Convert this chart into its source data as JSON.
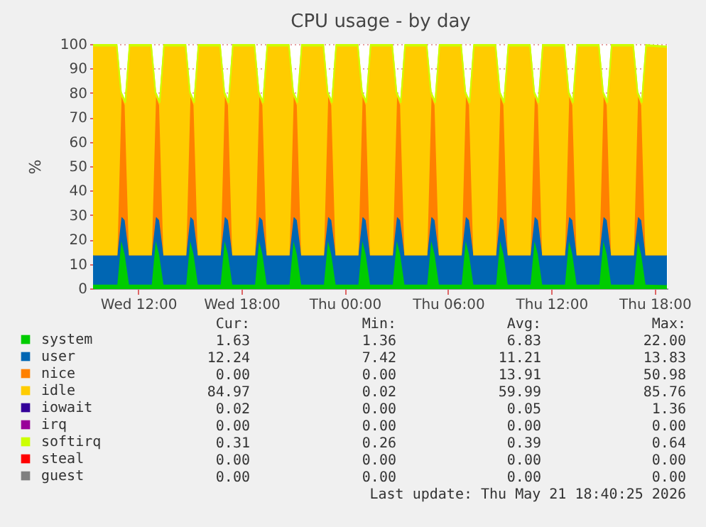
{
  "chart_data": {
    "type": "area",
    "title": "CPU usage - by day",
    "ylabel": "%",
    "stacked": true,
    "grid": true,
    "legend": "bottom left",
    "xlim": [
      "2026-05-20T09:25",
      "2026-05-21T18:45"
    ],
    "xticks": [
      {
        "value": "2026-05-20T12:00",
        "label": "Wed 12:00"
      },
      {
        "value": "2026-05-20T18:00",
        "label": "Wed 18:00"
      },
      {
        "value": "2026-05-21T00:00",
        "label": "Thu 00:00"
      },
      {
        "value": "2026-05-21T06:00",
        "label": "Thu 06:00"
      },
      {
        "value": "2026-05-21T12:00",
        "label": "Thu 12:00"
      },
      {
        "value": "2026-05-21T18:00",
        "label": "Thu 18:00"
      }
    ],
    "ylim": [
      0,
      100
    ],
    "yticks": [
      0,
      10,
      20,
      30,
      40,
      50,
      60,
      70,
      80,
      90,
      100
    ],
    "x": [
      "2026-05-20T09:25",
      "2026-05-20T10:45",
      "2026-05-20T11:00",
      "2026-05-20T11:15",
      "2026-05-20T11:30",
      "2026-05-20T12:45",
      "2026-05-20T13:00",
      "2026-05-20T13:15",
      "2026-05-20T13:30",
      "2026-05-20T14:45",
      "2026-05-20T15:00",
      "2026-05-20T15:15",
      "2026-05-20T15:30",
      "2026-05-20T16:45",
      "2026-05-20T17:00",
      "2026-05-20T17:15",
      "2026-05-20T17:30",
      "2026-05-20T18:45",
      "2026-05-20T19:00",
      "2026-05-20T19:15",
      "2026-05-20T19:30",
      "2026-05-20T20:45",
      "2026-05-20T21:00",
      "2026-05-20T21:15",
      "2026-05-20T21:30",
      "2026-05-20T22:45",
      "2026-05-20T23:00",
      "2026-05-20T23:15",
      "2026-05-20T23:30",
      "2026-05-21T00:45",
      "2026-05-21T01:00",
      "2026-05-21T01:15",
      "2026-05-21T01:30",
      "2026-05-21T02:45",
      "2026-05-21T03:00",
      "2026-05-21T03:15",
      "2026-05-21T03:30",
      "2026-05-21T04:45",
      "2026-05-21T05:00",
      "2026-05-21T05:15",
      "2026-05-21T05:30",
      "2026-05-21T06:45",
      "2026-05-21T07:00",
      "2026-05-21T07:15",
      "2026-05-21T07:30",
      "2026-05-21T08:45",
      "2026-05-21T09:00",
      "2026-05-21T09:15",
      "2026-05-21T09:30",
      "2026-05-21T10:45",
      "2026-05-21T11:00",
      "2026-05-21T11:15",
      "2026-05-21T11:30",
      "2026-05-21T12:45",
      "2026-05-21T13:00",
      "2026-05-21T13:15",
      "2026-05-21T13:30",
      "2026-05-21T14:45",
      "2026-05-21T15:00",
      "2026-05-21T15:15",
      "2026-05-21T15:30",
      "2026-05-21T16:45",
      "2026-05-21T17:00",
      "2026-05-21T17:15",
      "2026-05-21T17:30",
      "2026-05-21T18:40"
    ],
    "series": [
      {
        "name": "system",
        "color": "#00cc00",
        "values": [
          1.8,
          1.8,
          21,
          14,
          1.8,
          1.8,
          21,
          14,
          1.8,
          1.8,
          21,
          14,
          1.8,
          1.8,
          21,
          14,
          1.8,
          1.8,
          21,
          14,
          1.8,
          1.8,
          21,
          14,
          1.8,
          1.8,
          21,
          14,
          1.8,
          1.8,
          21,
          14,
          1.8,
          1.8,
          21,
          14,
          1.8,
          1.8,
          21,
          14,
          1.8,
          1.8,
          21,
          14,
          1.8,
          1.8,
          21,
          14,
          1.8,
          1.8,
          21,
          14,
          1.8,
          1.8,
          21,
          14,
          1.8,
          1.8,
          21,
          14,
          1.8,
          1.8,
          21,
          14,
          1.8,
          1.6
        ]
      },
      {
        "name": "user",
        "color": "#0066b3",
        "values": [
          12,
          12,
          9,
          14,
          12,
          12,
          9,
          14,
          12,
          12,
          9,
          14,
          12,
          12,
          9,
          14,
          12,
          12,
          9,
          14,
          12,
          12,
          9,
          14,
          12,
          12,
          9,
          14,
          12,
          12,
          9,
          14,
          12,
          12,
          9,
          14,
          12,
          12,
          9,
          14,
          12,
          12,
          9,
          14,
          12,
          12,
          9,
          14,
          12,
          12,
          9,
          14,
          12,
          12,
          9,
          14,
          12,
          12,
          9,
          14,
          12,
          12,
          9,
          14,
          12,
          12.2
        ]
      },
      {
        "name": "nice",
        "color": "#ff8000",
        "values": [
          0,
          0,
          50,
          47,
          0,
          0,
          50,
          47,
          0,
          0,
          50,
          47,
          0,
          0,
          50,
          47,
          0,
          0,
          50,
          47,
          0,
          0,
          50,
          47,
          0,
          0,
          50,
          47,
          0,
          0,
          50,
          47,
          0,
          0,
          50,
          47,
          0,
          0,
          50,
          47,
          0,
          0,
          50,
          47,
          0,
          0,
          50,
          47,
          0,
          0,
          50,
          47,
          0,
          0,
          50,
          47,
          0,
          0,
          50,
          47,
          0,
          0,
          50,
          47,
          0,
          0
        ]
      },
      {
        "name": "idle",
        "color": "#ffcc00",
        "values": [
          85.5,
          85.5,
          0,
          1,
          85.5,
          85.5,
          0,
          1,
          85.5,
          85.5,
          0,
          1,
          85.5,
          85.5,
          0,
          1,
          85.5,
          85.5,
          0,
          1,
          85.5,
          85.5,
          0,
          1,
          85.5,
          85.5,
          0,
          1,
          85.5,
          85.5,
          0,
          1,
          85.5,
          85.5,
          0,
          1,
          85.5,
          85.5,
          0,
          1,
          85.5,
          85.5,
          0,
          1,
          85.5,
          85.5,
          0,
          1,
          85.5,
          85.5,
          0,
          1,
          85.5,
          85.5,
          0,
          1,
          85.5,
          85.5,
          0,
          1,
          85.5,
          85.5,
          0,
          1,
          85.5,
          85
        ]
      },
      {
        "name": "iowait",
        "color": "#330099",
        "values": [
          null,
          null,
          null,
          null,
          null,
          null,
          null,
          null,
          null,
          null,
          null,
          null,
          null,
          null,
          null,
          null,
          null,
          null,
          null,
          null,
          null,
          null,
          null,
          null,
          null,
          null,
          null,
          null,
          null,
          null,
          null,
          null,
          null,
          null,
          null,
          null,
          null,
          null,
          null,
          null,
          null,
          null,
          null,
          null,
          null,
          null,
          null,
          null,
          null,
          null,
          null,
          null,
          null,
          null,
          null,
          null,
          null,
          null,
          null,
          null,
          null,
          null,
          null,
          null,
          null,
          null
        ]
      },
      {
        "name": "irq",
        "color": "#990099",
        "values": [
          null,
          null,
          null,
          null,
          null,
          null,
          null,
          null,
          null,
          null,
          null,
          null,
          null,
          null,
          null,
          null,
          null,
          null,
          null,
          null,
          null,
          null,
          null,
          null,
          null,
          null,
          null,
          null,
          null,
          null,
          null,
          null,
          null,
          null,
          null,
          null,
          null,
          null,
          null,
          null,
          null,
          null,
          null,
          null,
          null,
          null,
          null,
          null,
          null,
          null,
          null,
          null,
          null,
          null,
          null,
          null,
          null,
          null,
          null,
          null,
          null,
          null,
          null,
          null,
          null,
          null
        ]
      },
      {
        "name": "softirq",
        "color": "#ccff00",
        "values": [
          0.4,
          0.4,
          0.4,
          0.4,
          0.4,
          0.4,
          0.4,
          0.4,
          0.4,
          0.4,
          0.4,
          0.4,
          0.4,
          0.4,
          0.4,
          0.4,
          0.4,
          0.4,
          0.4,
          0.4,
          0.4,
          0.4,
          0.4,
          0.4,
          0.4,
          0.4,
          0.4,
          0.4,
          0.4,
          0.4,
          0.4,
          0.4,
          0.4,
          0.4,
          0.4,
          0.4,
          0.4,
          0.4,
          0.4,
          0.4,
          0.4,
          0.4,
          0.4,
          0.4,
          0.4,
          0.4,
          0.4,
          0.4,
          0.4,
          0.4,
          0.4,
          0.4,
          0.4,
          0.4,
          0.4,
          0.4,
          0.4,
          0.4,
          0.4,
          0.4,
          0.4,
          0.4,
          0.4,
          0.4,
          0.4,
          0.3
        ]
      },
      {
        "name": "steal",
        "color": "#ff0000",
        "values": [
          null,
          null,
          null,
          null,
          null,
          null,
          null,
          null,
          null,
          null,
          null,
          null,
          null,
          null,
          null,
          null,
          null,
          null,
          null,
          null,
          null,
          null,
          null,
          null,
          null,
          null,
          null,
          null,
          null,
          null,
          null,
          null,
          null,
          null,
          null,
          null,
          null,
          null,
          null,
          null,
          null,
          null,
          null,
          null,
          null,
          null,
          null,
          null,
          null,
          null,
          null,
          null,
          null,
          null,
          null,
          null,
          null,
          null,
          null,
          null,
          null,
          null,
          null,
          null,
          null,
          null
        ]
      },
      {
        "name": "guest",
        "color": "#808080",
        "values": [
          null,
          null,
          null,
          null,
          null,
          null,
          null,
          null,
          null,
          null,
          null,
          null,
          null,
          null,
          null,
          null,
          null,
          null,
          null,
          null,
          null,
          null,
          null,
          null,
          null,
          null,
          null,
          null,
          null,
          null,
          null,
          null,
          null,
          null,
          null,
          null,
          null,
          null,
          null,
          null,
          null,
          null,
          null,
          null,
          null,
          null,
          null,
          null,
          null,
          null,
          null,
          null,
          null,
          null,
          null,
          null,
          null,
          null,
          null,
          null,
          null,
          null,
          null,
          null,
          null,
          null
        ]
      }
    ],
    "annotations": [
      "Cur:",
      "Min:",
      "Avg:",
      "Max:",
      "1.63",
      "1.36",
      "6.83",
      "22.00",
      "12.24",
      "7.42",
      "11.21",
      "13.83",
      "0.00",
      "0.00",
      "13.91",
      "50.98",
      "84.97",
      "0.02",
      "59.99",
      "85.76",
      "0.02",
      "0.00",
      "0.05",
      "1.36",
      "0.00",
      "0.00",
      "0.00",
      "0.00",
      "0.31",
      "0.26",
      "0.39",
      "0.64",
      "0.00",
      "0.00",
      "0.00",
      "0.00",
      "0.00",
      "0.00",
      "0.00",
      "0.00",
      "Last update: Thu May 21 18:40:25 2026"
    ]
  }
}
